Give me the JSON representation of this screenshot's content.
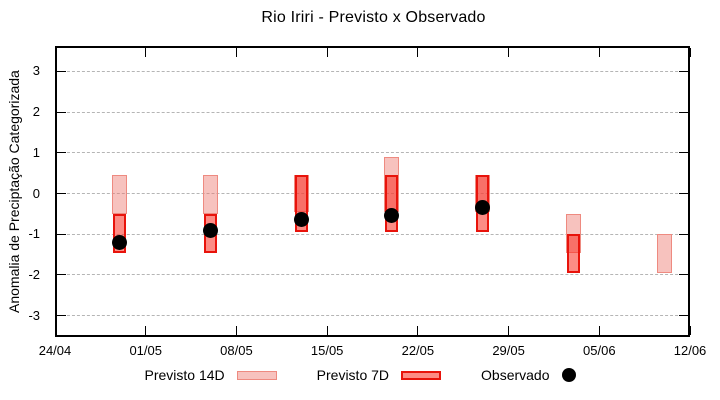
{
  "title": "Rio Iriri - Previsto x Observado",
  "y_axis": {
    "label": "Anomalia de Preciptação Categorizada",
    "ticks": [
      3,
      2,
      1,
      0,
      -1,
      -2,
      -3
    ]
  },
  "x_axis": {
    "ticks": [
      {
        "label": "24/04",
        "day": 0
      },
      {
        "label": "01/05",
        "day": 7
      },
      {
        "label": "08/05",
        "day": 14
      },
      {
        "label": "15/05",
        "day": 21
      },
      {
        "label": "22/05",
        "day": 28
      },
      {
        "label": "29/05",
        "day": 35
      },
      {
        "label": "05/06",
        "day": 42
      },
      {
        "label": "12/06",
        "day": 49
      }
    ]
  },
  "legend": {
    "previsto14": "Previsto 14D",
    "previsto7": "Previsto 7D",
    "observado": "Observado"
  },
  "colors": {
    "p14_fill": "rgba(238,120,110,0.45)",
    "p14_border": "#ee8a80",
    "p7_fill": "rgba(250,45,32,0.55)",
    "p7_border": "#e8130b",
    "observed": "#000000",
    "grid": "#b5b5b5",
    "axis": "#000000"
  },
  "chart_data": {
    "type": "bar",
    "subtype": "floating-range-bars-with-points",
    "title": "Rio Iriri - Previsto x Observado",
    "ylabel": "Anomalia de Preciptação Categorizada",
    "xlabel": "",
    "ylim": [
      -3.5,
      3.5
    ],
    "x_range": [
      "24/04",
      "12/06"
    ],
    "grid": "dashed-horizontal",
    "legend_position": "bottom-center",
    "series_names": [
      "Previsto 14D",
      "Previsto 7D",
      "Observado"
    ],
    "points": [
      {
        "date": "29/04",
        "day": 5,
        "previsto_14d": [
          -0.5,
          0.45
        ],
        "previsto_7d": [
          -1.45,
          -0.5
        ],
        "observado": -1.2
      },
      {
        "date": "06/05",
        "day": 12,
        "previsto_14d": [
          -0.5,
          0.45
        ],
        "previsto_7d": [
          -1.45,
          -0.5
        ],
        "observado": -0.9
      },
      {
        "date": "13/05",
        "day": 19,
        "previsto_14d": [
          -0.45,
          0.45
        ],
        "previsto_7d": [
          -0.95,
          0.45
        ],
        "observado": -0.65
      },
      {
        "date": "20/05",
        "day": 26,
        "previsto_14d": [
          -0.45,
          0.9
        ],
        "previsto_7d": [
          -0.95,
          0.45
        ],
        "observado": -0.55
      },
      {
        "date": "27/05",
        "day": 33,
        "previsto_14d": [
          -0.45,
          0.45
        ],
        "previsto_7d": [
          -0.95,
          0.45
        ],
        "observado": -0.35
      },
      {
        "date": "03/06",
        "day": 40,
        "previsto_14d": [
          -1.45,
          -0.5
        ],
        "previsto_7d": [
          -1.95,
          -1.0
        ],
        "observado": null
      },
      {
        "date": "10/06",
        "day": 47,
        "previsto_14d": [
          -1.95,
          -1.0
        ],
        "previsto_7d": null,
        "observado": null
      }
    ]
  }
}
